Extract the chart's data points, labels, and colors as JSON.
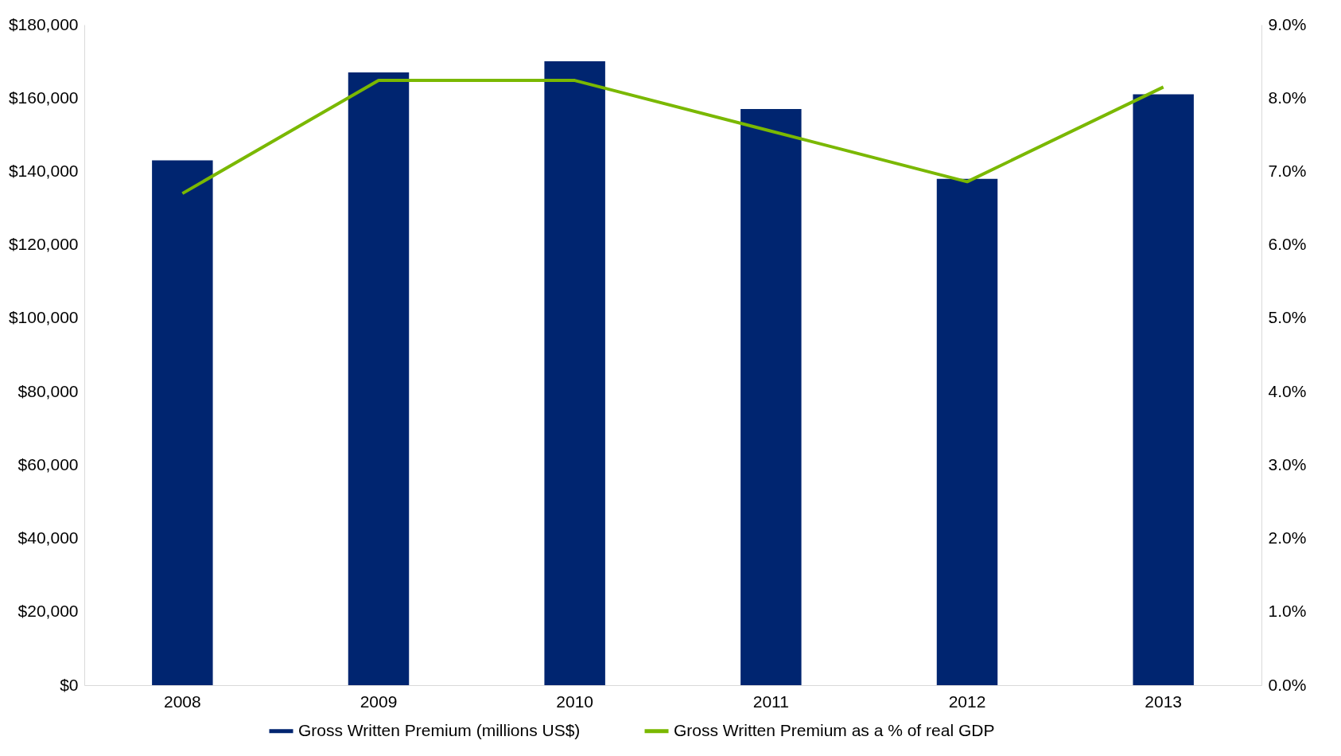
{
  "chart_data": {
    "type": "bar",
    "categories": [
      "2008",
      "2009",
      "2010",
      "2011",
      "2012",
      "2013"
    ],
    "series": [
      {
        "name": "Gross Written Premium (millions US$)",
        "color": "#002570",
        "values": [
          143000,
          167000,
          170000,
          157000,
          138000,
          161000
        ]
      },
      {
        "name": "Gross Written Premium as a % of real GDP",
        "type": "line",
        "axis": "y2",
        "color": "#7ab800",
        "values": [
          6.7,
          8.24,
          8.24,
          7.55,
          6.86,
          8.15
        ]
      }
    ],
    "ylim": [
      0,
      180000
    ],
    "yticks": [
      {
        "value": 0,
        "label": "$0"
      },
      {
        "value": 20000,
        "label": "$20,000"
      },
      {
        "value": 40000,
        "label": "$40,000"
      },
      {
        "value": 60000,
        "label": "$60,000"
      },
      {
        "value": 80000,
        "label": "$80,000"
      },
      {
        "value": 100000,
        "label": "$100,000"
      },
      {
        "value": 120000,
        "label": "$120,000"
      },
      {
        "value": 140000,
        "label": "$140,000"
      },
      {
        "value": 160000,
        "label": "$160,000"
      },
      {
        "value": 180000,
        "label": "$180,000"
      }
    ],
    "y2lim": [
      0,
      9
    ],
    "y2ticks": [
      {
        "value": 0,
        "label": "0.0%"
      },
      {
        "value": 1,
        "label": "1.0%"
      },
      {
        "value": 2,
        "label": "2.0%"
      },
      {
        "value": 3,
        "label": "3.0%"
      },
      {
        "value": 4,
        "label": "4.0%"
      },
      {
        "value": 5,
        "label": "5.0%"
      },
      {
        "value": 6,
        "label": "6.0%"
      },
      {
        "value": 7,
        "label": "7.0%"
      },
      {
        "value": 8,
        "label": "8.0%"
      },
      {
        "value": 9,
        "label": "9.0%"
      }
    ],
    "grid": false,
    "legend": "bottom",
    "line_style": "solid",
    "marker": "none"
  }
}
